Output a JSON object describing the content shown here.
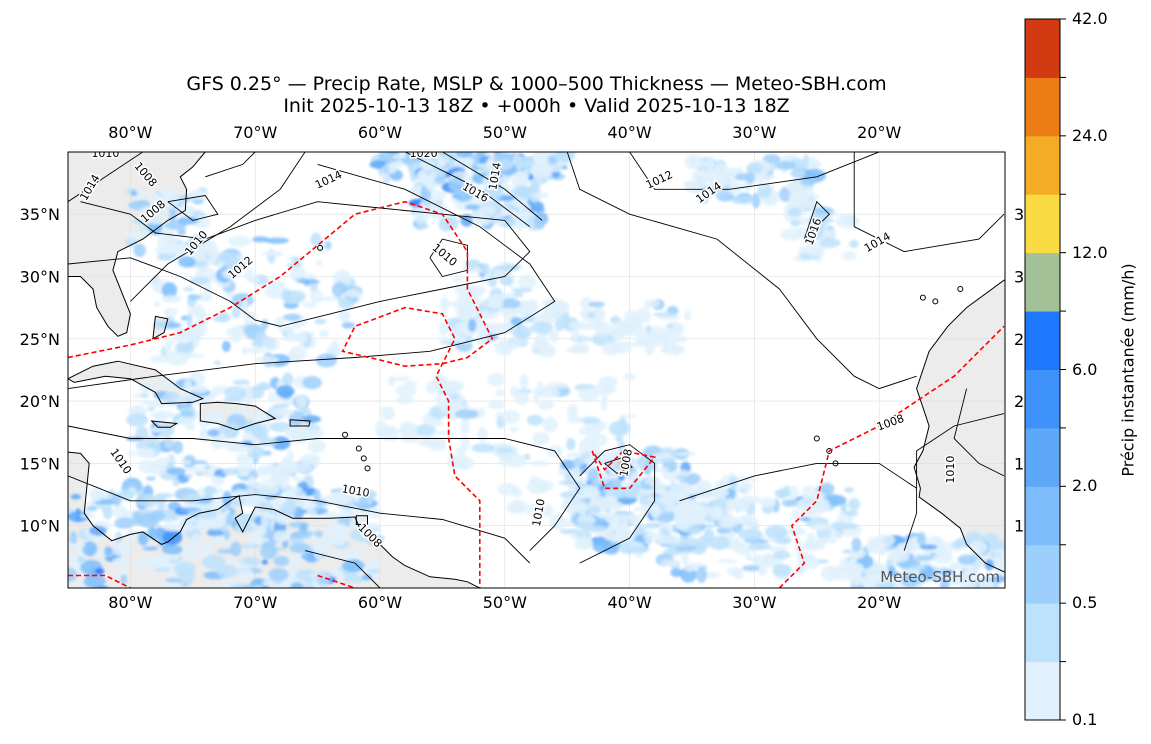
{
  "title": {
    "line1": "GFS 0.25° — Precip Rate, MSLP & 1000–500 Thickness — Meteo-SBH.com",
    "line2": "Init 2025-10-13 18Z • +000h • Valid 2025-10-13 18Z"
  },
  "map": {
    "extent_lon": [
      -85,
      -10
    ],
    "extent_lat": [
      5,
      40
    ],
    "lon_ticks": [
      "80°W",
      "70°W",
      "60°W",
      "50°W",
      "40°W",
      "30°W",
      "20°W"
    ],
    "lat_ticks": [
      "35°N",
      "30°N",
      "25°N",
      "20°N",
      "15°N",
      "10°N"
    ],
    "right_lat_ticks_clipped": [
      "3",
      "3",
      "2",
      "2",
      "1",
      "1"
    ],
    "isobar_labels": [
      "1010",
      "1014",
      "1008",
      "1008",
      "1010",
      "1012",
      "1014",
      "1020",
      "1016",
      "1010",
      "1014",
      "1012",
      "1014",
      "1016",
      "1014",
      "1010",
      "1010",
      "1010",
      "1008",
      "1008",
      "1010",
      "1008"
    ],
    "watermark": "Meteo-SBH.com",
    "colors": {
      "land": "#ececec",
      "ocean": "#ffffff",
      "isobar": "#000000",
      "thickness_540": "#ff0000"
    }
  },
  "colorbar": {
    "label": "Précip instantanée (mm/h)",
    "tick_labels": [
      "0.1",
      "0.5",
      "2.0",
      "6.0",
      "12.0",
      "24.0",
      "42.0"
    ],
    "colors": [
      "#e1f1fd",
      "#bde2fc",
      "#9dcffc",
      "#7dbdfc",
      "#5ea8f9",
      "#3f92f9",
      "#1e78fd",
      "#a2c197",
      "#fbdb44",
      "#f4ab26",
      "#ec7d14",
      "#d23b11"
    ]
  }
}
